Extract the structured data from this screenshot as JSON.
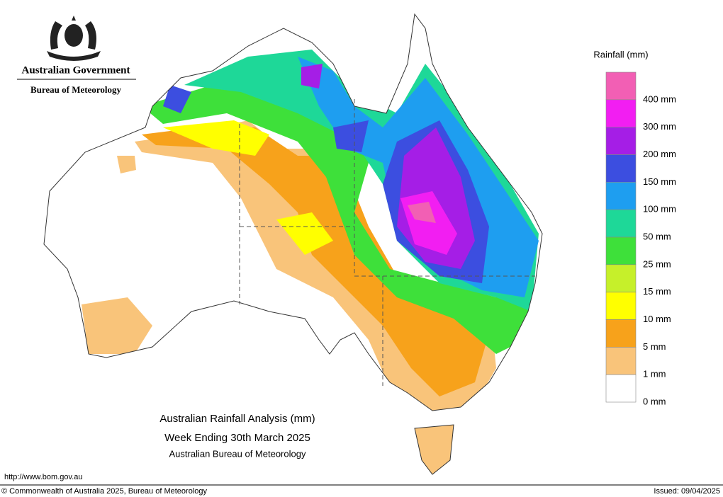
{
  "header": {
    "government": "Australian Government",
    "agency": "Bureau of Meteorology"
  },
  "legend": {
    "title": "Rainfall (mm)",
    "items": [
      {
        "label": "400 mm",
        "color": "#f25fb4"
      },
      {
        "label": "300 mm",
        "color": "#f21ef2"
      },
      {
        "label": "200 mm",
        "color": "#a51ee6"
      },
      {
        "label": "150 mm",
        "color": "#3c4ee0"
      },
      {
        "label": "100 mm",
        "color": "#1e9ef0"
      },
      {
        "label": "50 mm",
        "color": "#1ed898"
      },
      {
        "label": "25 mm",
        "color": "#3ee03a"
      },
      {
        "label": "15 mm",
        "color": "#c6f02a"
      },
      {
        "label": "10 mm",
        "color": "#ffff00"
      },
      {
        "label": "5 mm",
        "color": "#f7a21b"
      },
      {
        "label": "1 mm",
        "color": "#f9c47a"
      },
      {
        "label": "0 mm",
        "color": "#ffffff"
      }
    ]
  },
  "title": {
    "lines": [
      "Australian Rainfall Analysis (mm)",
      "Week Ending 30th March 2025",
      "Australian Bureau of Meteorology"
    ]
  },
  "footer": {
    "url": "http://www.bom.gov.au",
    "copyright": "© Commonwealth of Australia 2025, Bureau of Meteorology",
    "issued": "Issued: 09/04/2025"
  }
}
